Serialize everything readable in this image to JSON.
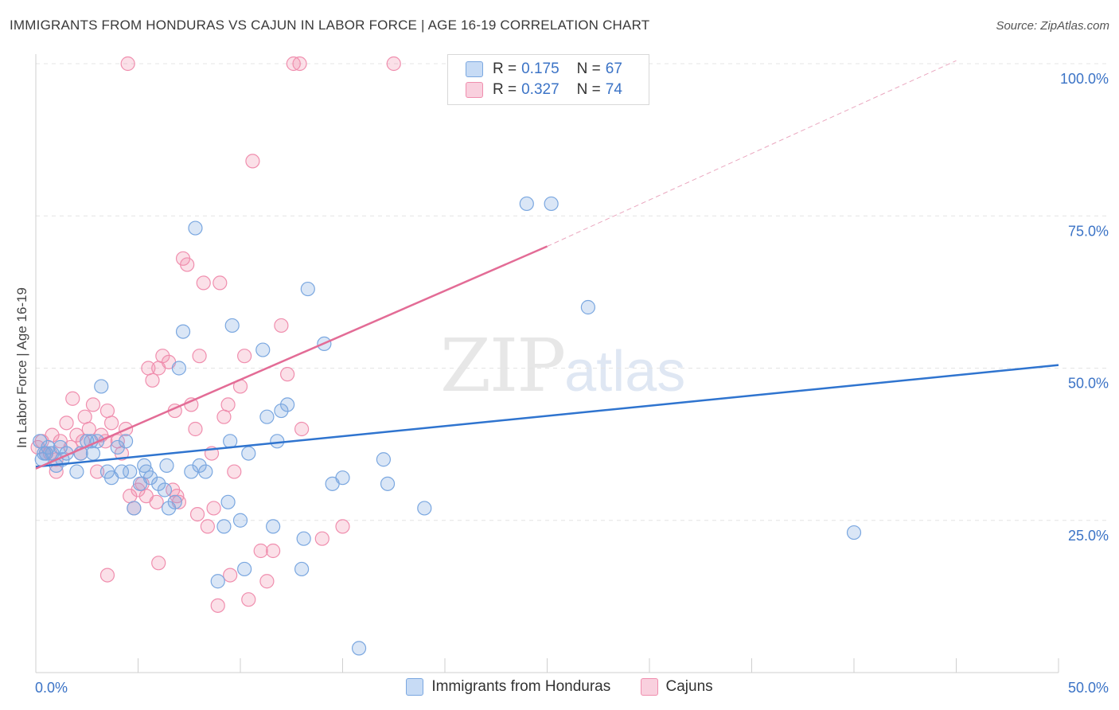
{
  "title": "IMMIGRANTS FROM HONDURAS VS CAJUN IN LABOR FORCE | AGE 16-19 CORRELATION CHART",
  "source": "Source: ZipAtlas.com",
  "watermark": {
    "zip": "ZIP",
    "atlas": "atlas"
  },
  "legend": {
    "rows": [
      {
        "r_label": "R =",
        "r_value": "0.175",
        "n_label": "N =",
        "n_value": "67"
      },
      {
        "r_label": "R =",
        "r_value": "0.327",
        "n_label": "N =",
        "n_value": "74"
      }
    ]
  },
  "chart_data": {
    "type": "scatter",
    "title": "IMMIGRANTS FROM HONDURAS VS CAJUN IN LABOR FORCE | AGE 16-19 CORRELATION CHART",
    "xlabel": "",
    "ylabel": "In Labor Force | Age 16-19",
    "xlim": [
      0,
      50
    ],
    "ylim": [
      0,
      100
    ],
    "x_tick_labels": [
      "0.0%",
      "50.0%"
    ],
    "y_tick_labels": [
      "25.0%",
      "50.0%",
      "75.0%",
      "100.0%"
    ],
    "y_ticks": [
      25,
      50,
      75,
      100
    ],
    "grid": true,
    "legend_position": "bottom",
    "colors": {
      "honduras": "#7aa7e0",
      "cajun": "#f08eae",
      "honduras_line": "#2f74cf",
      "cajun_line": "#e36c96",
      "tick_label": "#3b73c6"
    },
    "series": [
      {
        "name": "Immigrants from Honduras",
        "r": 0.175,
        "n": 67,
        "trend": {
          "x": [
            0,
            50
          ],
          "y": [
            33.8,
            50.5
          ]
        },
        "points": [
          [
            0.2,
            38
          ],
          [
            0.3,
            35
          ],
          [
            0.4,
            36
          ],
          [
            0.6,
            37
          ],
          [
            0.8,
            36
          ],
          [
            1.0,
            34
          ],
          [
            1.2,
            37
          ],
          [
            1.5,
            36
          ],
          [
            2.0,
            33
          ],
          [
            2.2,
            36
          ],
          [
            2.5,
            38
          ],
          [
            2.7,
            38
          ],
          [
            3.2,
            47
          ],
          [
            3.5,
            33
          ],
          [
            3.7,
            32
          ],
          [
            4.0,
            37
          ],
          [
            4.4,
            38
          ],
          [
            4.6,
            33
          ],
          [
            4.8,
            27
          ],
          [
            5.1,
            31
          ],
          [
            5.4,
            33
          ],
          [
            5.6,
            32
          ],
          [
            6.0,
            31
          ],
          [
            6.4,
            34
          ],
          [
            6.5,
            27
          ],
          [
            6.8,
            28
          ],
          [
            7.0,
            50
          ],
          [
            7.2,
            56
          ],
          [
            7.6,
            33
          ],
          [
            7.8,
            73
          ],
          [
            8.3,
            33
          ],
          [
            8.9,
            15
          ],
          [
            9.2,
            24
          ],
          [
            9.4,
            28
          ],
          [
            9.5,
            38
          ],
          [
            9.6,
            57
          ],
          [
            10.0,
            25
          ],
          [
            10.2,
            17
          ],
          [
            10.4,
            36
          ],
          [
            11.1,
            53
          ],
          [
            11.3,
            42
          ],
          [
            11.6,
            24
          ],
          [
            11.8,
            38
          ],
          [
            12.0,
            43
          ],
          [
            12.3,
            44
          ],
          [
            13.0,
            17
          ],
          [
            13.1,
            22
          ],
          [
            13.3,
            63
          ],
          [
            14.1,
            54
          ],
          [
            14.5,
            31
          ],
          [
            15.0,
            32
          ],
          [
            15.8,
            4
          ],
          [
            17.0,
            35
          ],
          [
            17.2,
            31
          ],
          [
            19.0,
            27
          ],
          [
            24.0,
            77
          ],
          [
            25.2,
            77
          ],
          [
            27.0,
            60
          ],
          [
            40.0,
            23
          ],
          [
            0.5,
            36
          ],
          [
            1.3,
            35
          ],
          [
            3.0,
            38
          ],
          [
            5.3,
            34
          ],
          [
            6.3,
            30
          ],
          [
            8.0,
            34
          ],
          [
            2.8,
            36
          ],
          [
            4.2,
            33
          ]
        ]
      },
      {
        "name": "Cajuns",
        "r": 0.327,
        "n": 74,
        "trend": {
          "x": [
            0,
            25
          ],
          "y": [
            33.5,
            70.0
          ]
        },
        "trend_extension": {
          "x": [
            25,
            45
          ],
          "y": [
            70.0,
            100.5
          ]
        },
        "points": [
          [
            0.1,
            37
          ],
          [
            0.3,
            38
          ],
          [
            0.5,
            36
          ],
          [
            0.8,
            39
          ],
          [
            1.0,
            35
          ],
          [
            1.2,
            38
          ],
          [
            1.5,
            41
          ],
          [
            1.8,
            45
          ],
          [
            2.0,
            39
          ],
          [
            2.2,
            36
          ],
          [
            2.4,
            42
          ],
          [
            2.6,
            40
          ],
          [
            2.8,
            44
          ],
          [
            3.0,
            33
          ],
          [
            3.2,
            39
          ],
          [
            3.4,
            38
          ],
          [
            3.5,
            43
          ],
          [
            3.7,
            41
          ],
          [
            4.0,
            38
          ],
          [
            4.2,
            36
          ],
          [
            4.4,
            40
          ],
          [
            4.6,
            29
          ],
          [
            4.8,
            27
          ],
          [
            5.0,
            30
          ],
          [
            5.2,
            31
          ],
          [
            5.4,
            29
          ],
          [
            5.5,
            50
          ],
          [
            5.7,
            48
          ],
          [
            6.0,
            50
          ],
          [
            6.2,
            52
          ],
          [
            6.5,
            51
          ],
          [
            6.7,
            30
          ],
          [
            6.9,
            29
          ],
          [
            7.0,
            28
          ],
          [
            7.2,
            68
          ],
          [
            7.4,
            67
          ],
          [
            7.6,
            44
          ],
          [
            7.8,
            40
          ],
          [
            8.0,
            52
          ],
          [
            8.2,
            64
          ],
          [
            8.4,
            24
          ],
          [
            8.6,
            36
          ],
          [
            8.7,
            27
          ],
          [
            8.9,
            11
          ],
          [
            9.0,
            64
          ],
          [
            9.2,
            42
          ],
          [
            9.4,
            44
          ],
          [
            9.5,
            16
          ],
          [
            9.7,
            33
          ],
          [
            10.0,
            47
          ],
          [
            10.2,
            52
          ],
          [
            10.4,
            12
          ],
          [
            10.6,
            84
          ],
          [
            11.0,
            20
          ],
          [
            11.3,
            15
          ],
          [
            11.6,
            20
          ],
          [
            12.0,
            57
          ],
          [
            12.3,
            49
          ],
          [
            13.0,
            40
          ],
          [
            14.0,
            22
          ],
          [
            15.0,
            24
          ],
          [
            4.5,
            100
          ],
          [
            6.0,
            18
          ],
          [
            12.6,
            100
          ],
          [
            12.9,
            100
          ],
          [
            17.5,
            100
          ],
          [
            3.5,
            16
          ],
          [
            2.3,
            38
          ],
          [
            1.7,
            37
          ],
          [
            1.0,
            33
          ],
          [
            0.7,
            36
          ],
          [
            5.9,
            28
          ],
          [
            6.8,
            43
          ],
          [
            7.9,
            26
          ]
        ]
      }
    ]
  }
}
